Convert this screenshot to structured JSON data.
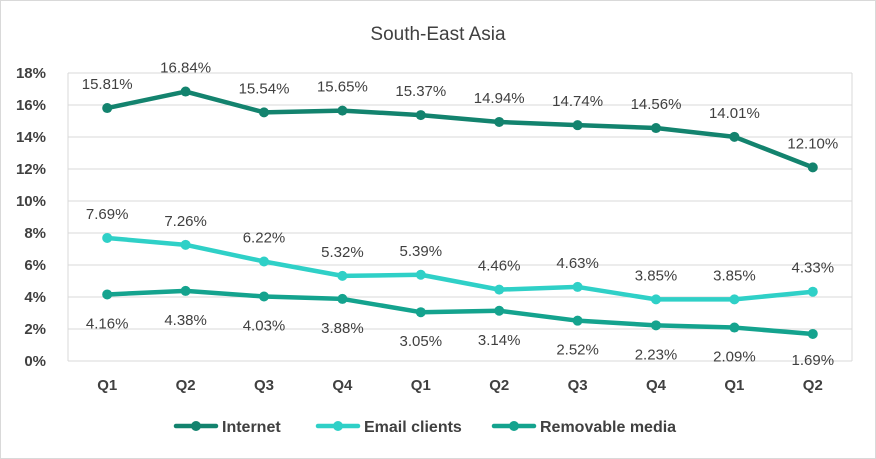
{
  "chart_data": {
    "type": "line",
    "title": "South-East Asia",
    "categories": [
      "Q1",
      "Q2",
      "Q3",
      "Q4",
      "Q1",
      "Q2",
      "Q3",
      "Q4",
      "Q1",
      "Q2"
    ],
    "ylim": [
      0,
      18
    ],
    "yticks": [
      "0%",
      "2%",
      "4%",
      "6%",
      "8%",
      "10%",
      "12%",
      "14%",
      "16%",
      "18%"
    ],
    "grid": true,
    "legend_position": "bottom",
    "series": [
      {
        "name": "Internet",
        "color": "#13836e",
        "values": [
          15.81,
          16.84,
          15.54,
          15.65,
          15.37,
          14.94,
          14.74,
          14.56,
          14.01,
          12.1
        ],
        "labels": [
          "15.81%",
          "16.84%",
          "15.54%",
          "15.65%",
          "15.37%",
          "14.94%",
          "14.74%",
          "14.56%",
          "14.01%",
          "12.10%"
        ]
      },
      {
        "name": "Email clients",
        "color": "#2fd0c7",
        "values": [
          7.69,
          7.26,
          6.22,
          5.32,
          5.39,
          4.46,
          4.63,
          3.85,
          3.85,
          4.33
        ],
        "labels": [
          "7.69%",
          "7.26%",
          "6.22%",
          "5.32%",
          "5.39%",
          "4.46%",
          "4.63%",
          "3.85%",
          "3.85%",
          "4.33%"
        ]
      },
      {
        "name": "Removable media",
        "color": "#14a38e",
        "values": [
          4.16,
          4.38,
          4.03,
          3.88,
          3.05,
          3.14,
          2.52,
          2.23,
          2.09,
          1.69
        ],
        "labels": [
          "4.16%",
          "4.38%",
          "4.03%",
          "3.88%",
          "3.05%",
          "3.14%",
          "2.52%",
          "2.23%",
          "2.09%",
          "1.69%"
        ]
      }
    ]
  }
}
